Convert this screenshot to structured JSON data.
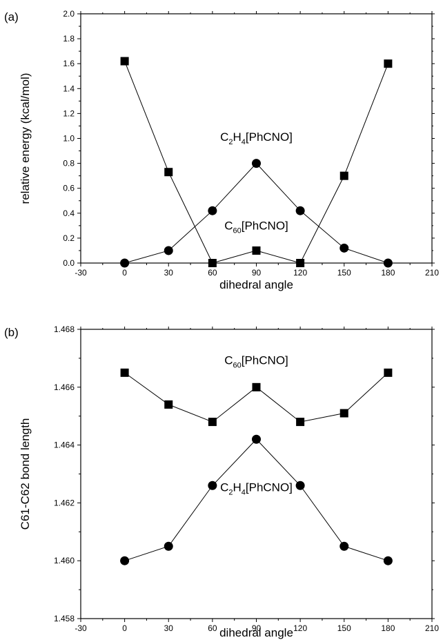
{
  "chart_data": [
    {
      "panel_label": "(a)",
      "type": "line",
      "xlabel": "dihedral angle",
      "ylabel": "relative energy (kcal/mol)",
      "xlim": [
        -30,
        210
      ],
      "ylim": [
        0,
        2.0
      ],
      "x_ticks": [
        -30,
        0,
        30,
        60,
        90,
        120,
        150,
        180,
        210
      ],
      "y_ticks": [
        0.0,
        0.2,
        0.4,
        0.6,
        0.8,
        1.0,
        1.2,
        1.4,
        1.6,
        1.8,
        2.0
      ],
      "x_tick_labels": [
        "-30",
        "0",
        "30",
        "60",
        "90",
        "120",
        "150",
        "180",
        "210"
      ],
      "y_tick_labels": [
        "0.0",
        "0.2",
        "0.4",
        "0.6",
        "0.8",
        "1.0",
        "1.2",
        "1.4",
        "1.6",
        "1.8",
        "2.0"
      ],
      "grid": false,
      "series": [
        {
          "marker": "square",
          "x": [
            0,
            30,
            60,
            90,
            120,
            150,
            180
          ],
          "y": [
            1.62,
            0.73,
            0.0,
            0.1,
            0.0,
            0.7,
            1.6
          ]
        },
        {
          "marker": "circle",
          "x": [
            0,
            30,
            60,
            90,
            120,
            150,
            180
          ],
          "y": [
            0.0,
            0.1,
            0.42,
            0.8,
            0.42,
            0.12,
            0.0
          ]
        }
      ],
      "annotations": [
        {
          "pre": "C",
          "sub": "2",
          "mid": "H",
          "sub2": "4",
          "post": "[PhCNO]",
          "at_x": 90,
          "at_y": 0.98
        },
        {
          "pre": "C",
          "sub": "60",
          "mid": "",
          "sub2": "",
          "post": "[PhCNO]",
          "at_x": 90,
          "at_y": 0.27
        }
      ]
    },
    {
      "panel_label": "(b)",
      "type": "line",
      "xlabel": "dihedral angle",
      "ylabel": "C61-C62 bond length",
      "xlim": [
        -30,
        210
      ],
      "ylim": [
        1.458,
        1.468
      ],
      "x_ticks": [
        -30,
        0,
        30,
        60,
        90,
        120,
        150,
        180,
        210
      ],
      "y_ticks": [
        1.458,
        1.46,
        1.462,
        1.464,
        1.466,
        1.468
      ],
      "x_tick_labels": [
        "-30",
        "0",
        "30",
        "60",
        "90",
        "120",
        "150",
        "180",
        "210"
      ],
      "y_tick_labels": [
        "1.458",
        "1.460",
        "1.462",
        "1.464",
        "1.466",
        "1.468"
      ],
      "grid": false,
      "series": [
        {
          "marker": "square",
          "x": [
            0,
            30,
            60,
            90,
            120,
            150,
            180
          ],
          "y": [
            1.4665,
            1.4654,
            1.4648,
            1.466,
            1.4648,
            1.4651,
            1.4665
          ]
        },
        {
          "marker": "circle",
          "x": [
            0,
            30,
            60,
            90,
            120,
            150,
            180
          ],
          "y": [
            1.46,
            1.4605,
            1.4626,
            1.4642,
            1.4626,
            1.4605,
            1.46
          ]
        }
      ],
      "annotations": [
        {
          "pre": "C",
          "sub": "60",
          "mid": "",
          "sub2": "",
          "post": "[PhCNO]",
          "at_x": 90,
          "at_y": 1.4668
        },
        {
          "pre": "C",
          "sub": "2",
          "mid": "H",
          "sub2": "4",
          "post": "[PhCNO]",
          "at_x": 90,
          "at_y": 1.4624
        }
      ]
    }
  ]
}
